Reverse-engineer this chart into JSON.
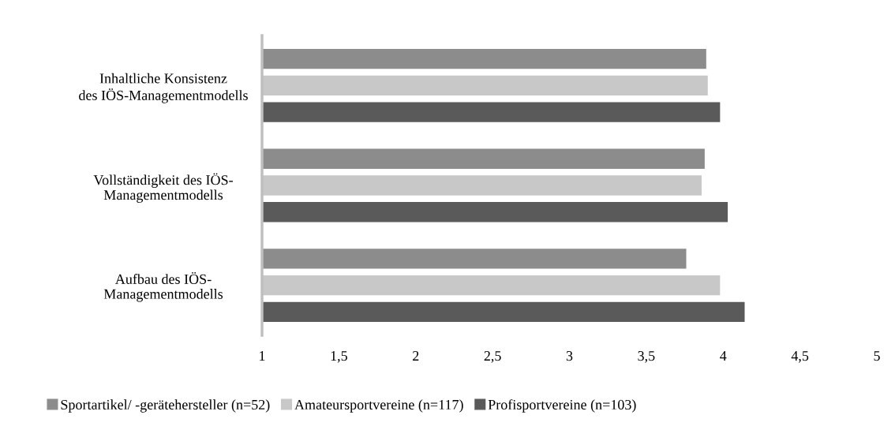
{
  "chart_data": {
    "type": "bar",
    "orientation": "horizontal",
    "categories": [
      "Inhaltliche Konsistenz\ndes IÖS-Managementmodells",
      "Vollständigkeit des IÖS-\nManagementmodells",
      "Aufbau des IÖS-\nManagementmodells"
    ],
    "series": [
      {
        "name": "Sportartikel/ -gerätehersteller (n=52)",
        "color": "#8c8c8c",
        "values": [
          3.89,
          3.88,
          3.76
        ]
      },
      {
        "name": "Amateursportvereine (n=117)",
        "color": "#c8c8c8",
        "values": [
          3.9,
          3.86,
          3.98
        ]
      },
      {
        "name": "Profisportvereine (n=103)",
        "color": "#5a5a5a",
        "values": [
          3.98,
          4.03,
          4.14
        ]
      }
    ],
    "xlim": [
      1,
      5
    ],
    "xticks": [
      1,
      {
        "value": 1.5,
        "label": "1,5"
      },
      2,
      {
        "value": 2.5,
        "label": "2,5"
      },
      3,
      {
        "value": 3.5,
        "label": "3,5"
      },
      4,
      {
        "value": 4.5,
        "label": "4,5"
      },
      5
    ],
    "grid": false,
    "legend": "bottom"
  }
}
